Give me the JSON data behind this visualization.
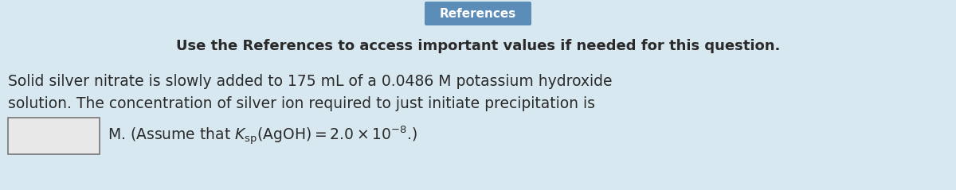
{
  "background_color": "#d8e8f0",
  "button_text": "References",
  "button_bg": "#5b8db8",
  "button_text_color": "#ffffff",
  "subtitle": "Use the References to access important values if needed for this question.",
  "line1": "Solid silver nitrate is slowly added to 175 mL of a 0.0486 M potassium hydroxide",
  "line2": "solution. The concentration of silver ion required to just initiate precipitation is",
  "line3_pre": "M. (Assume that ",
  "line3_post": ".)",
  "main_fontsize": 13.5,
  "subtitle_fontsize": 13.0,
  "btn_fontsize": 11.0,
  "text_color": "#2a2a2a",
  "box_face_color": "#e8e8e8",
  "box_edge_color": "#777777"
}
